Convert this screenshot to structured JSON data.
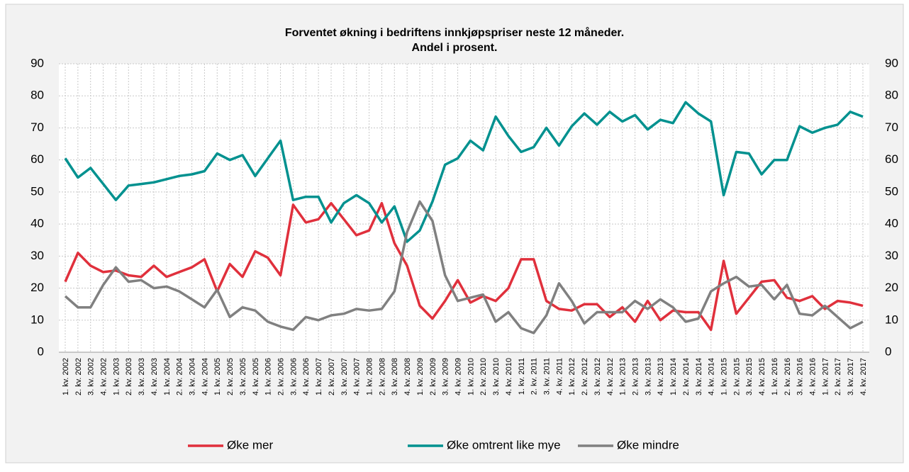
{
  "chart_data": {
    "type": "line",
    "title": "Forventet økning i bedriftens innkjøpspriser neste 12 måneder.",
    "subtitle": "Andel i prosent.",
    "categories": [
      "1. kv. 2002",
      "2. kv. 2002",
      "3. kv. 2002",
      "4. kv. 2002",
      "1. kv. 2003",
      "2. kv. 2003",
      "3. kv. 2003",
      "4. kv. 2003",
      "1. kv. 2004",
      "2. kv. 2004",
      "3. kv. 2004",
      "4. kv. 2004",
      "1. kv. 2005",
      "2. kv. 2005",
      "3. kv. 2005",
      "4. kv. 2005",
      "1. kv. 2006",
      "2. kv. 2006",
      "3. kv. 2006",
      "4. kv. 2006",
      "1. kv. 2007",
      "2. kv. 2007",
      "3. kv. 2007",
      "4. kv. 2007",
      "1. kv. 2008",
      "2. kv. 2008",
      "3. kv. 2008",
      "4. kv. 2008",
      "1. kv. 2009",
      "2. kv. 2009",
      "3. kv. 2009",
      "4. kv. 2009",
      "1. kv. 2010",
      "2. kv. 2010",
      "3. kv. 2010",
      "4. kv. 2010",
      "1. kv. 2011",
      "2. kv. 2011",
      "3. kv. 2011",
      "4. kv. 2011",
      "1. kv. 2012",
      "2. kv. 2012",
      "3. kv. 2012",
      "4. kv. 2012",
      "1. kv. 2013",
      "2. kv. 2013",
      "3. kv. 2013",
      "4. kv. 2013",
      "1. kv. 2014",
      "2. kv. 2014",
      "3. kv. 2014",
      "4. kv. 2014",
      "1. kv. 2015",
      "2. kv. 2015",
      "3. kv. 2015",
      "4. kv. 2015",
      "1. kv. 2016",
      "2. kv. 2016",
      "3. kv. 2016",
      "4. kv. 2016",
      "1. kv. 2017",
      "2. kv. 2017",
      "3. kv. 2017",
      "4. kv. 2017"
    ],
    "series": [
      {
        "name": "Øke mer",
        "color": "#e0303c",
        "values": [
          22,
          31,
          27,
          25,
          25.5,
          24,
          23.5,
          27,
          23.5,
          25,
          26.5,
          29,
          19,
          27.5,
          23.5,
          31.5,
          29.5,
          24,
          46,
          40.5,
          41.5,
          46.5,
          41.5,
          36.5,
          38,
          46.5,
          34,
          27,
          14.5,
          10.5,
          16,
          22.5,
          15.5,
          17.5,
          16,
          20,
          29,
          29,
          16,
          13.5,
          13,
          15,
          15,
          11,
          14,
          9.5,
          16,
          10,
          13,
          12.5,
          12.5,
          7,
          28.5,
          12,
          17,
          22,
          22.5,
          17,
          16,
          17.5,
          13.5,
          16,
          15.5,
          14.5
        ]
      },
      {
        "name": "Øke omtrent like mye",
        "color": "#00918f",
        "values": [
          60.5,
          54.5,
          57.5,
          52.5,
          47.5,
          52,
          52.5,
          53,
          54,
          55,
          55.5,
          56.5,
          62,
          60,
          61.5,
          55,
          60.5,
          66,
          47.5,
          48.5,
          48.5,
          40.5,
          46.5,
          49,
          46.5,
          40.5,
          45.5,
          34.5,
          38,
          47,
          58.5,
          60.5,
          66,
          63,
          73.5,
          67.5,
          62.5,
          64,
          70,
          64.5,
          70.5,
          74.5,
          71,
          75,
          72,
          74,
          69.5,
          72.5,
          71.5,
          78,
          74.5,
          72,
          49,
          62.5,
          62,
          55.5,
          60,
          60,
          70.5,
          68.5,
          70,
          71,
          75,
          73.5
        ]
      },
      {
        "name": "Øke mindre",
        "color": "#808080",
        "values": [
          17.5,
          14,
          14,
          21,
          26.5,
          22,
          22.5,
          20,
          20.5,
          19,
          16.5,
          14,
          19.5,
          11,
          14,
          13,
          9.5,
          8,
          7,
          11,
          10,
          11.5,
          12,
          13.5,
          13,
          13.5,
          19,
          37.5,
          47,
          41,
          24,
          16,
          17,
          18,
          9.5,
          12.5,
          7.5,
          6,
          11.5,
          21.5,
          16,
          9,
          12.5,
          12.5,
          12.5,
          16,
          13.5,
          16.5,
          14,
          9.5,
          10.5,
          19,
          21.5,
          23.5,
          20.5,
          21,
          16.5,
          21,
          12,
          11.5,
          14.5,
          11,
          7.5,
          9.5
        ]
      }
    ],
    "ylim": [
      0,
      90
    ],
    "yticks": [
      0,
      10,
      20,
      30,
      40,
      50,
      60,
      70,
      80,
      90
    ],
    "y2lim": [
      0,
      90
    ],
    "y2ticks": [
      0,
      10,
      20,
      30,
      40,
      50,
      60,
      70,
      80,
      90
    ],
    "grid": true,
    "legend": "bottom"
  }
}
